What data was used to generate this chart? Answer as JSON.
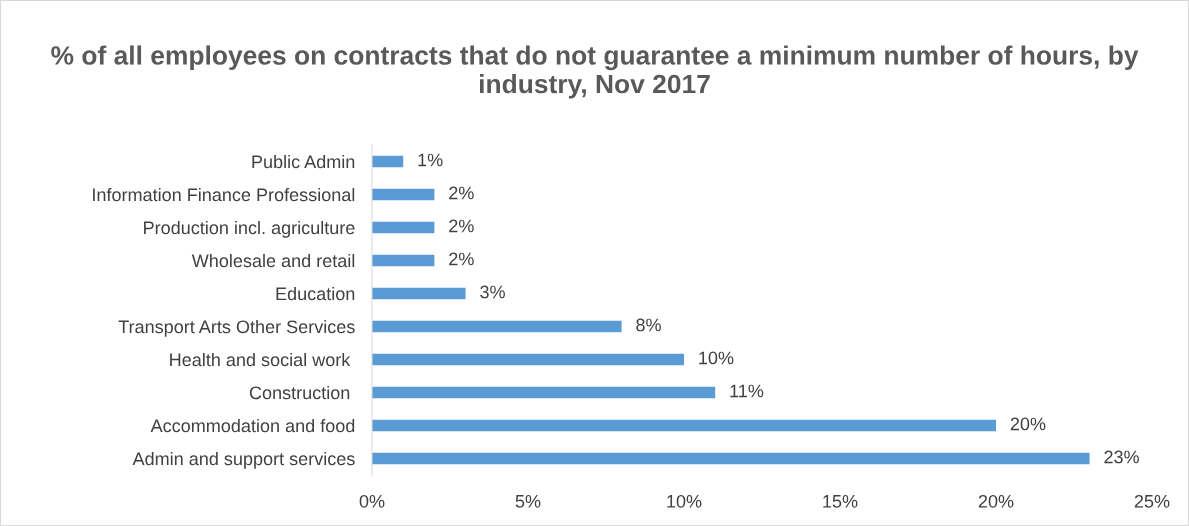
{
  "chart_data": {
    "type": "bar",
    "orientation": "horizontal",
    "title": "% of all employees on contracts that do not guarantee a minimum number of hours, by industry, Nov 2017",
    "categories": [
      "Public Admin",
      "Information Finance Professional",
      "Production incl. agriculture",
      "Wholesale and retail",
      "Education",
      "Transport Arts Other Services",
      "Health and social work ",
      "Construction ",
      "Accommodation and food",
      "Admin and support services"
    ],
    "values": [
      1,
      2,
      2,
      2,
      3,
      8,
      10,
      11,
      20,
      23
    ],
    "value_labels": [
      "1%",
      "2%",
      "2%",
      "2%",
      "3%",
      "8%",
      "10%",
      "11%",
      "20%",
      "23%"
    ],
    "color": "#5b9bd5",
    "xlim": [
      0,
      25
    ],
    "xticks": [
      {
        "value": 0,
        "label": "0%"
      },
      {
        "value": 5,
        "label": "5%"
      },
      {
        "value": 10,
        "label": "10%"
      },
      {
        "value": 15,
        "label": "15%"
      },
      {
        "value": 20,
        "label": "20%"
      },
      {
        "value": 25,
        "label": "25%"
      }
    ],
    "grid": false,
    "legend": false
  }
}
